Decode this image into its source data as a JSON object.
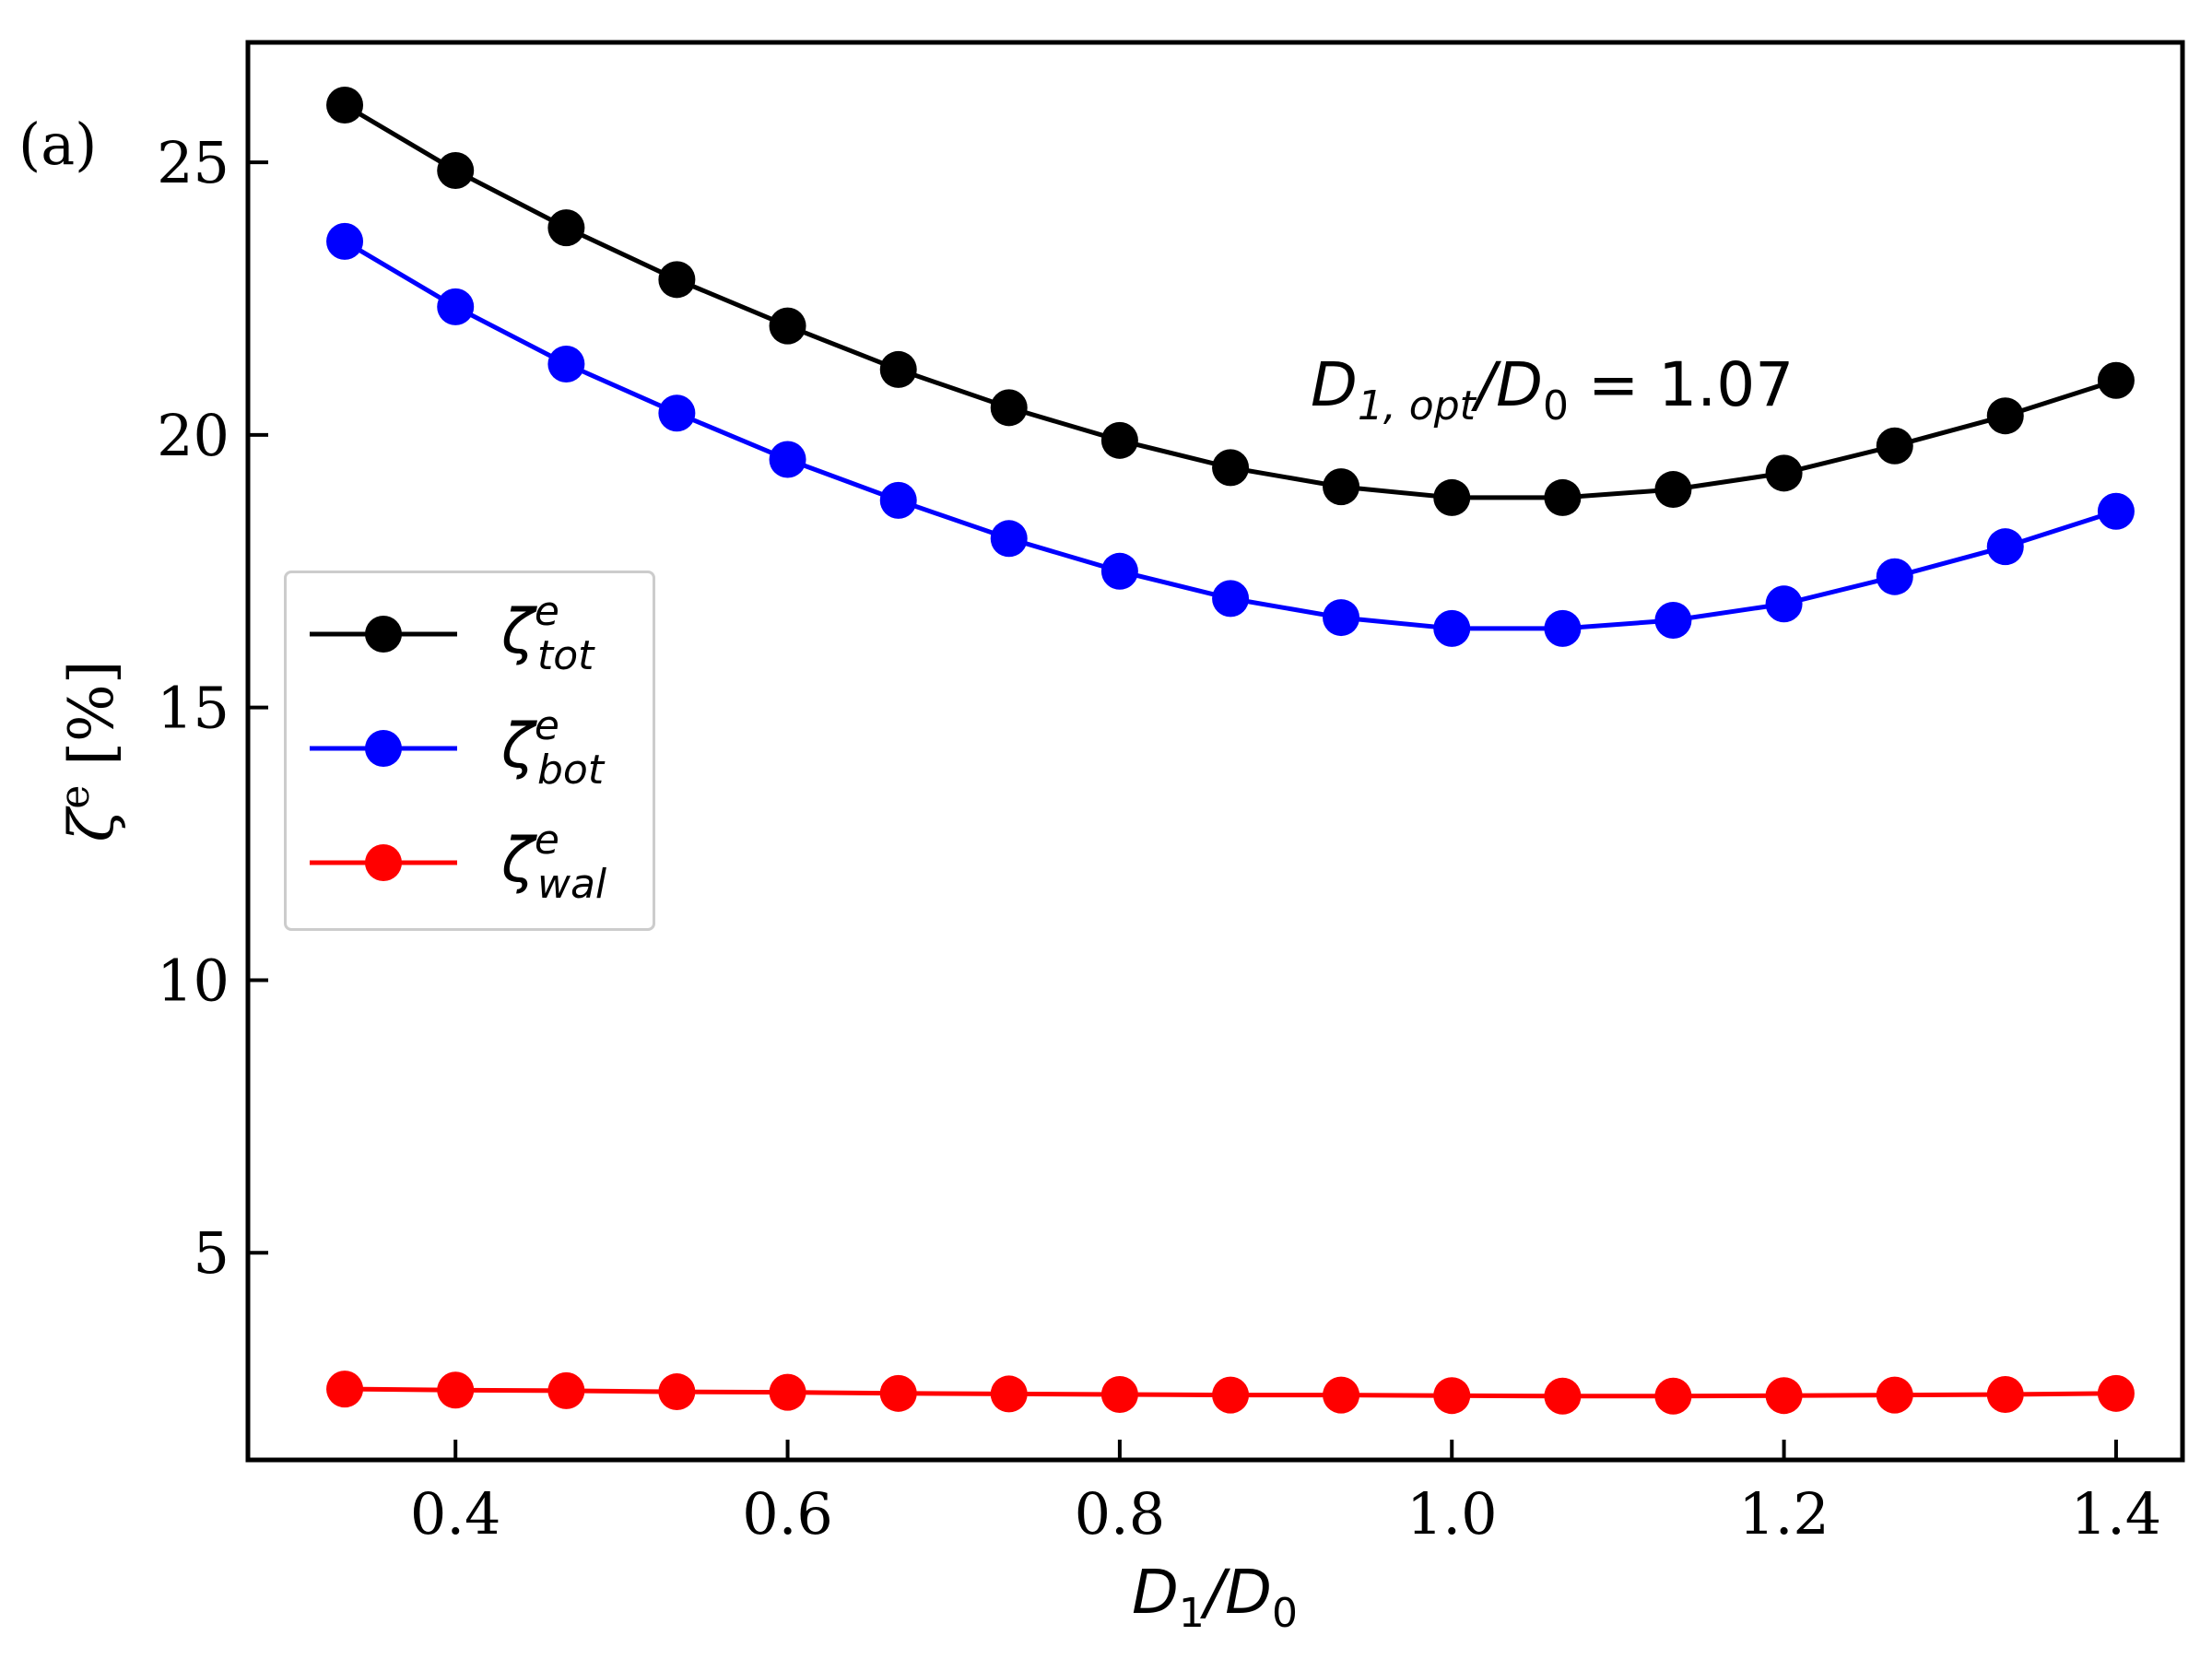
{
  "panel_label": "(a)",
  "annotation": {
    "lhs_main": "D",
    "lhs_sub": "1, opt",
    "lhs_den": "/D",
    "lhs_den_sub": "0",
    "rhs": " = 1.07"
  },
  "colors": {
    "tot": "#000000",
    "bot": "#0000ff",
    "wal": "#ff0000",
    "axis": "#000000",
    "legend_border": "#cccccc"
  },
  "chart_data": {
    "type": "line",
    "title": "",
    "xlabel": {
      "main": "D",
      "sub": "1",
      "slash": "/D",
      "sub2": "0"
    },
    "ylabel": {
      "main": "ζ",
      "sup": "e",
      "unit": " [%]"
    },
    "xlim": [
      0.275,
      1.44
    ],
    "ylim": [
      1.2,
      27.2
    ],
    "xticks": [
      {
        "value": 0.4,
        "label": "0.4"
      },
      {
        "value": 0.6,
        "label": "0.6"
      },
      {
        "value": 0.8,
        "label": "0.8"
      },
      {
        "value": 1.0,
        "label": "1.0"
      },
      {
        "value": 1.2,
        "label": "1.2"
      },
      {
        "value": 1.4,
        "label": "1.4"
      }
    ],
    "yticks": [
      {
        "value": 5,
        "label": "5"
      },
      {
        "value": 10,
        "label": "10"
      },
      {
        "value": 15,
        "label": "15"
      },
      {
        "value": 20,
        "label": "20"
      },
      {
        "value": 25,
        "label": "25"
      }
    ],
    "grid": false,
    "legend_position": "center-left",
    "x": [
      0.3333,
      0.4,
      0.4667,
      0.5333,
      0.6,
      0.6667,
      0.7333,
      0.8,
      0.8667,
      0.9333,
      1.0,
      1.0667,
      1.1333,
      1.2,
      1.2667,
      1.3333,
      1.4
    ],
    "series": [
      {
        "key": "tot",
        "name": {
          "main": "ζ",
          "sup": "e",
          "sub": "tot"
        },
        "values": [
          26.05,
          24.85,
          23.8,
          22.85,
          22.0,
          21.2,
          20.5,
          19.9,
          19.4,
          19.05,
          18.85,
          18.85,
          19.0,
          19.3,
          19.8,
          20.35,
          21.0
        ]
      },
      {
        "key": "bot",
        "name": {
          "main": "ζ",
          "sup": "e",
          "sub": "bot"
        },
        "values": [
          23.55,
          22.35,
          21.3,
          20.4,
          19.55,
          18.8,
          18.1,
          17.5,
          17.0,
          16.65,
          16.45,
          16.45,
          16.6,
          16.9,
          17.4,
          17.95,
          18.6
        ]
      },
      {
        "key": "wal",
        "name": {
          "main": "ζ",
          "sup": "e",
          "sub": "wal"
        },
        "values": [
          2.5,
          2.48,
          2.47,
          2.45,
          2.44,
          2.42,
          2.41,
          2.4,
          2.39,
          2.39,
          2.38,
          2.37,
          2.37,
          2.38,
          2.39,
          2.4,
          2.42
        ]
      }
    ]
  }
}
